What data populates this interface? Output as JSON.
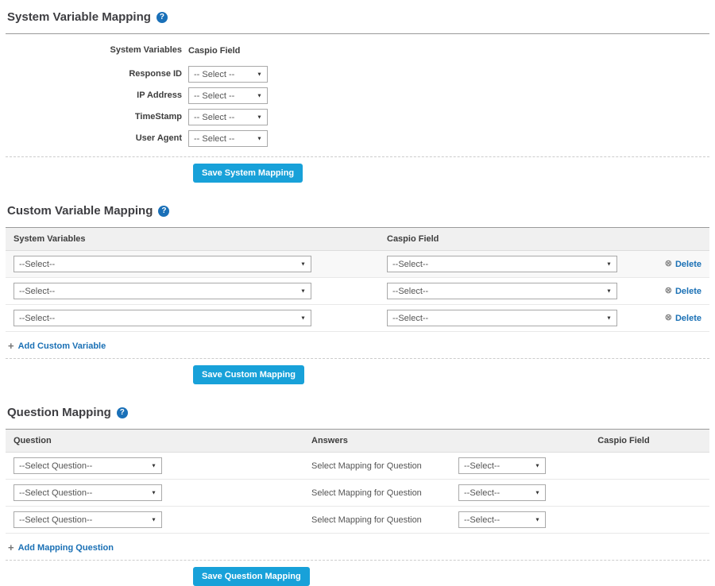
{
  "colors": {
    "button_bg": "#18a1d9",
    "link": "#1a70b5",
    "help_icon_bg": "#1a70b8",
    "heading_text": "#3e3e42",
    "table_header_bg": "#f0f0f0"
  },
  "icons": {
    "help": "?",
    "delete": "⊗",
    "add": "+",
    "dropdown_arrow": "▼"
  },
  "system_section": {
    "title": "System Variable Mapping",
    "col1_header": "System Variables",
    "col2_header": "Caspio Field",
    "rows": [
      {
        "label": "Response ID",
        "value": "-- Select --"
      },
      {
        "label": "IP Address",
        "value": "-- Select --"
      },
      {
        "label": "TimeStamp",
        "value": "-- Select --"
      },
      {
        "label": "User Agent",
        "value": "-- Select --"
      }
    ],
    "save_label": "Save System Mapping"
  },
  "custom_section": {
    "title": "Custom Variable Mapping",
    "col1_header": "System Variables",
    "col2_header": "Caspio Field",
    "rows": [
      {
        "system_value": "--Select--",
        "caspio_value": "--Select--",
        "delete_label": "Delete"
      },
      {
        "system_value": "--Select--",
        "caspio_value": "--Select--",
        "delete_label": "Delete"
      },
      {
        "system_value": "--Select--",
        "caspio_value": "--Select--",
        "delete_label": "Delete"
      }
    ],
    "add_label": "Add Custom Variable",
    "save_label": "Save Custom Mapping"
  },
  "question_section": {
    "title": "Question Mapping",
    "col1_header": "Question",
    "col2_header": "Answers",
    "col3_header": "Caspio Field",
    "rows": [
      {
        "question_value": "--Select Question--",
        "answer_text": "Select Mapping for Question",
        "mapping_value": "--Select--"
      },
      {
        "question_value": "--Select Question--",
        "answer_text": "Select Mapping for Question",
        "mapping_value": "--Select--"
      },
      {
        "question_value": "--Select Question--",
        "answer_text": "Select Mapping for Question",
        "mapping_value": "--Select--"
      }
    ],
    "add_label": "Add Mapping Question",
    "save_label": "Save Question Mapping"
  }
}
